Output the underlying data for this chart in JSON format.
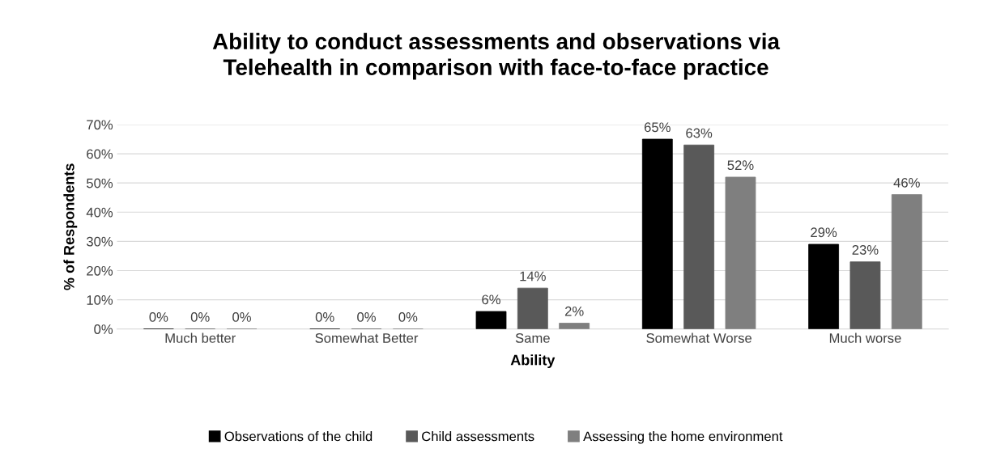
{
  "chart_data": {
    "type": "bar",
    "title": "Ability to conduct assessments and observations via\nTelehealth in comparison with face-to-face practice",
    "xlabel": "Ability",
    "ylabel": "% of Respondents",
    "categories": [
      "Much better",
      "Somewhat Better",
      "Same",
      "Somewhat Worse",
      "Much worse"
    ],
    "series": [
      {
        "name": "Observations of the child",
        "color": "#000000",
        "values": [
          0,
          0,
          6,
          65,
          29
        ],
        "value_labels": [
          "0%",
          "0%",
          "6%",
          "65%",
          "29%"
        ]
      },
      {
        "name": "Child assessments",
        "color": "#595959",
        "values": [
          0,
          0,
          14,
          63,
          23
        ],
        "value_labels": [
          "0%",
          "0%",
          "14%",
          "63%",
          "23%"
        ]
      },
      {
        "name": "Assessing the home environment",
        "color": "#7f7f7f",
        "values": [
          0,
          0,
          2,
          52,
          46
        ],
        "value_labels": [
          "0%",
          "0%",
          "2%",
          "52%",
          "46%"
        ]
      }
    ],
    "ylim": [
      0,
      70
    ],
    "yticks": [
      {
        "value": 0,
        "label": "0%"
      },
      {
        "value": 10,
        "label": "10%"
      },
      {
        "value": 20,
        "label": "20%"
      },
      {
        "value": 30,
        "label": "30%"
      },
      {
        "value": 40,
        "label": "40%"
      },
      {
        "value": 50,
        "label": "50%"
      },
      {
        "value": 60,
        "label": "60%"
      },
      {
        "value": 70,
        "label": "70%"
      }
    ],
    "grid": "y",
    "legend": "bottom"
  }
}
